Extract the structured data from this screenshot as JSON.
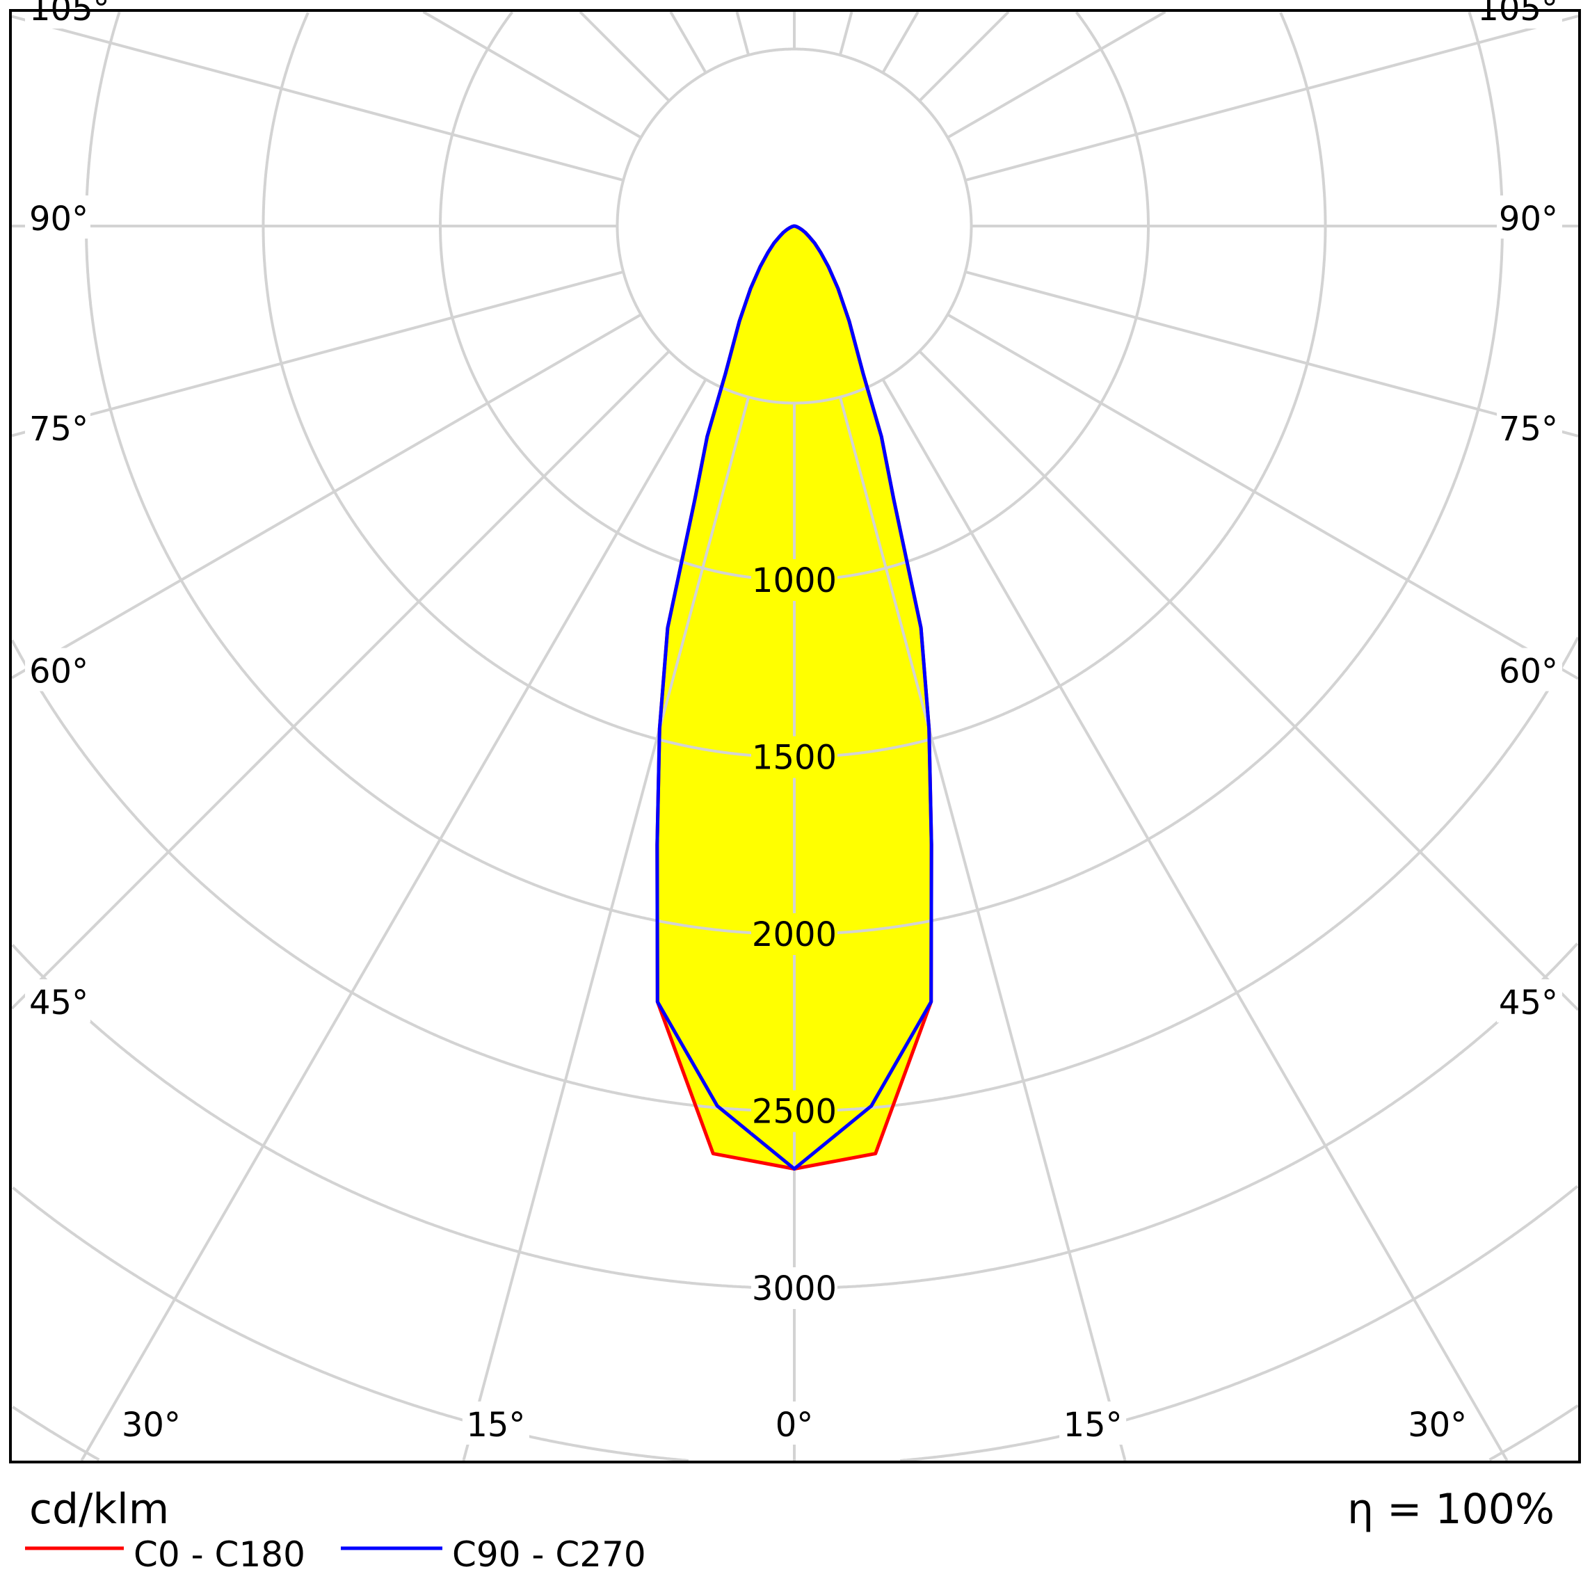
{
  "chart_data": {
    "type": "polar",
    "title": "",
    "unit_label": "cd/klm",
    "efficiency_label": "η = 100%",
    "radial_ticks": [
      500,
      1000,
      1500,
      2000,
      2500,
      3000,
      3500,
      4000,
      4500
    ],
    "radial_tick_labels": [
      "1000",
      "1500",
      "2000",
      "2500",
      "3000"
    ],
    "radial_tick_label_values": [
      1000,
      1500,
      2000,
      2500,
      3000
    ],
    "angle_step_deg": 15,
    "side_angle_labels": [
      "105°",
      "90°",
      "75°",
      "60°",
      "45°"
    ],
    "side_angle_values": [
      105,
      90,
      75,
      60,
      45
    ],
    "bottom_angle_labels": [
      "30°",
      "15°",
      "0°",
      "15°",
      "30°"
    ],
    "bottom_angle_values": [
      -30,
      -15,
      0,
      15,
      30
    ],
    "angles_deg": [
      0,
      5,
      10,
      12.5,
      15,
      17.5,
      20,
      22.5,
      25,
      30,
      35,
      40,
      45,
      50,
      55,
      60,
      65,
      70,
      75,
      80,
      85,
      90
    ],
    "series": [
      {
        "name": "C0 - C180",
        "color": "#ff0000",
        "values": [
          2663,
          2630,
          2225,
          1790,
          1470,
          1190,
          820,
          643,
          460,
          310,
          215,
          150,
          105,
          75,
          50,
          35,
          22,
          13,
          8,
          4,
          2,
          0
        ]
      },
      {
        "name": "C90 - C270",
        "color": "#0000ff",
        "values": [
          2663,
          2495,
          2225,
          1790,
          1470,
          1190,
          820,
          643,
          460,
          310,
          215,
          150,
          105,
          75,
          50,
          35,
          22,
          13,
          8,
          4,
          2,
          0
        ]
      }
    ],
    "fill_color": "#ffff00",
    "grid": true,
    "legend_position": "bottom-left"
  }
}
